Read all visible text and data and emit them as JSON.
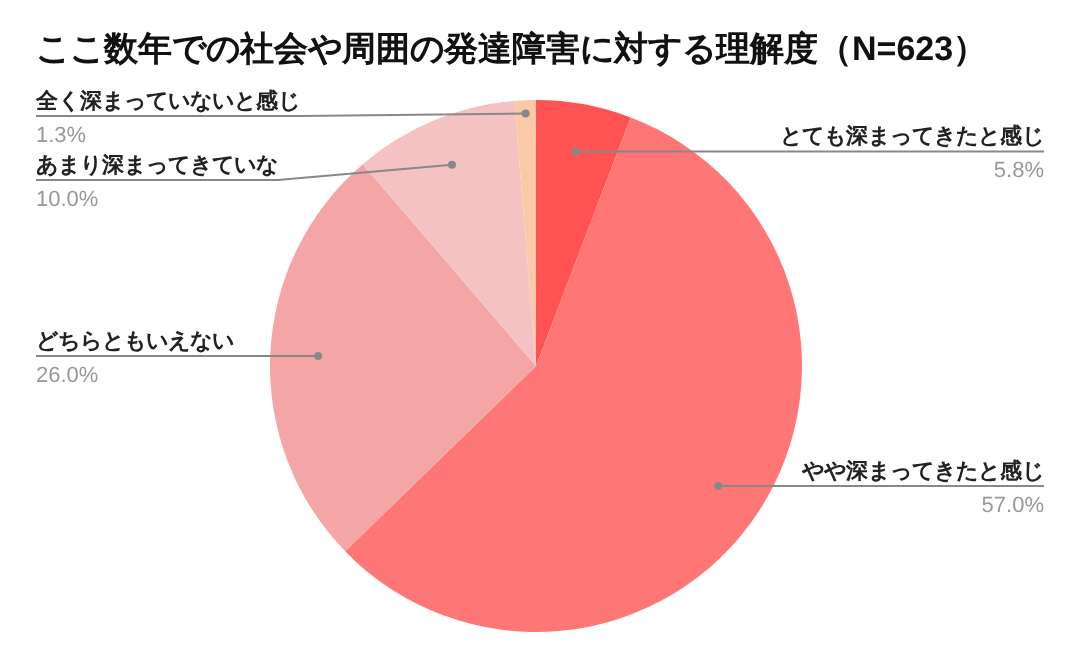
{
  "chart_data": {
    "type": "pie",
    "title": "ここ数年での社会や周囲の発達障害に対する理解度（N=623）",
    "categories": [
      "とても深まってきたと感じ",
      "やや深まってきたと感じ",
      "どちらともいえない",
      "あまり深まってきていな",
      "全く深まっていないと感じ"
    ],
    "values": [
      5.8,
      57.0,
      26.0,
      10.0,
      1.3
    ],
    "colors": [
      "#ff5252",
      "#ff7676",
      "#f4a6a6",
      "#f4c2c2",
      "#f9c9a8"
    ],
    "value_labels": [
      "5.8%",
      "57.0%",
      "26.0%",
      "10.0%",
      "1.3%"
    ]
  }
}
